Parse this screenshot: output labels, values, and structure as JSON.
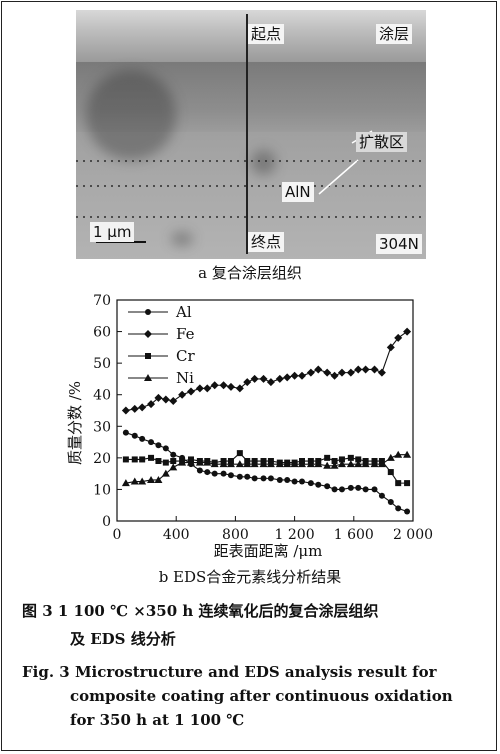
{
  "micrograph": {
    "labels": {
      "start": "起点",
      "coating": "涂层",
      "diffusion": "扩散区",
      "aln": "AlN",
      "scale": "1 μm",
      "end": "终点",
      "substrate": "304N"
    },
    "caption": "a  复合涂层组织"
  },
  "chart_data": {
    "type": "line",
    "xlabel": "距表面距离 /μm",
    "ylabel": "质量分数 /%",
    "xlim": [
      0,
      2000
    ],
    "ylim": [
      0,
      70
    ],
    "xticks": [
      "0",
      "400",
      "800",
      "1 200",
      "1 600",
      "2 000"
    ],
    "yticks": [
      "0",
      "10",
      "20",
      "30",
      "40",
      "50",
      "60",
      "70"
    ],
    "legend_position": "top-left",
    "series": [
      {
        "name": "Al",
        "marker": "circle",
        "x": [
          60,
          120,
          170,
          230,
          280,
          330,
          380,
          440,
          500,
          560,
          610,
          660,
          720,
          770,
          830,
          880,
          930,
          990,
          1040,
          1100,
          1150,
          1200,
          1250,
          1310,
          1360,
          1420,
          1470,
          1520,
          1580,
          1630,
          1680,
          1740,
          1790,
          1850,
          1900,
          1960
        ],
        "y": [
          28,
          27,
          26,
          25,
          24,
          23,
          21,
          20,
          18,
          16,
          15.5,
          15,
          15,
          14.5,
          14,
          14,
          13.5,
          13.5,
          13.5,
          13,
          13,
          12.5,
          12.5,
          12,
          11.5,
          11,
          10,
          10,
          10.5,
          10.5,
          10,
          10,
          8,
          6,
          4,
          3
        ]
      },
      {
        "name": "Fe",
        "marker": "diamond",
        "x": [
          60,
          120,
          170,
          230,
          280,
          330,
          380,
          440,
          500,
          560,
          610,
          660,
          720,
          770,
          830,
          880,
          930,
          990,
          1040,
          1100,
          1150,
          1200,
          1250,
          1310,
          1360,
          1420,
          1470,
          1520,
          1580,
          1630,
          1680,
          1740,
          1790,
          1850,
          1900,
          1960
        ],
        "y": [
          35,
          35.5,
          36,
          37,
          39,
          38.5,
          38,
          40,
          41,
          42,
          42,
          43,
          43,
          42.5,
          42,
          44,
          45,
          45,
          44,
          45,
          45.5,
          46,
          46,
          47,
          48,
          47,
          46,
          47,
          47,
          48,
          48,
          48,
          47,
          55,
          58,
          60
        ]
      },
      {
        "name": "Cr",
        "marker": "square",
        "x": [
          60,
          120,
          170,
          230,
          280,
          330,
          380,
          440,
          500,
          560,
          610,
          660,
          720,
          770,
          830,
          880,
          930,
          990,
          1040,
          1100,
          1150,
          1200,
          1250,
          1310,
          1360,
          1420,
          1470,
          1520,
          1580,
          1630,
          1680,
          1740,
          1790,
          1850,
          1900,
          1960
        ],
        "y": [
          19.5,
          19.5,
          19.5,
          20,
          19,
          18.5,
          19,
          19,
          19.5,
          19,
          19,
          18.5,
          19,
          19,
          21.5,
          19,
          19,
          19,
          19,
          18.5,
          18.5,
          18.5,
          19,
          19,
          19,
          20,
          19,
          19.5,
          20,
          19.5,
          19,
          19,
          19,
          15.5,
          12,
          12
        ]
      },
      {
        "name": "Ni",
        "marker": "triangle",
        "x": [
          60,
          120,
          170,
          230,
          280,
          330,
          380,
          440,
          500,
          560,
          610,
          660,
          720,
          770,
          830,
          880,
          930,
          990,
          1040,
          1100,
          1150,
          1200,
          1250,
          1310,
          1360,
          1420,
          1470,
          1520,
          1580,
          1630,
          1680,
          1740,
          1790,
          1850,
          1900,
          1960
        ],
        "y": [
          12,
          12.5,
          12.5,
          13,
          13,
          15,
          17,
          18.5,
          18.5,
          18.5,
          18.5,
          18,
          18,
          18,
          18,
          18,
          18,
          18,
          18,
          18,
          18,
          18,
          18,
          18,
          18,
          17.5,
          17.5,
          18,
          18,
          18,
          18,
          18,
          18,
          20,
          21,
          21
        ]
      }
    ],
    "caption": "b  EDS合金元素线分析结果"
  },
  "figure_caption": {
    "zh_line1": "图 3   1 100 ℃ ×350 h 连续氧化后的复合涂层组织",
    "zh_line2": "及 EDS 线分析",
    "en_line1": "Fig. 3   Microstructure and EDS analysis result for",
    "en_line2": "composite coating after continuous oxidation",
    "en_line3": "for 350 h at 1 100 ℃"
  }
}
